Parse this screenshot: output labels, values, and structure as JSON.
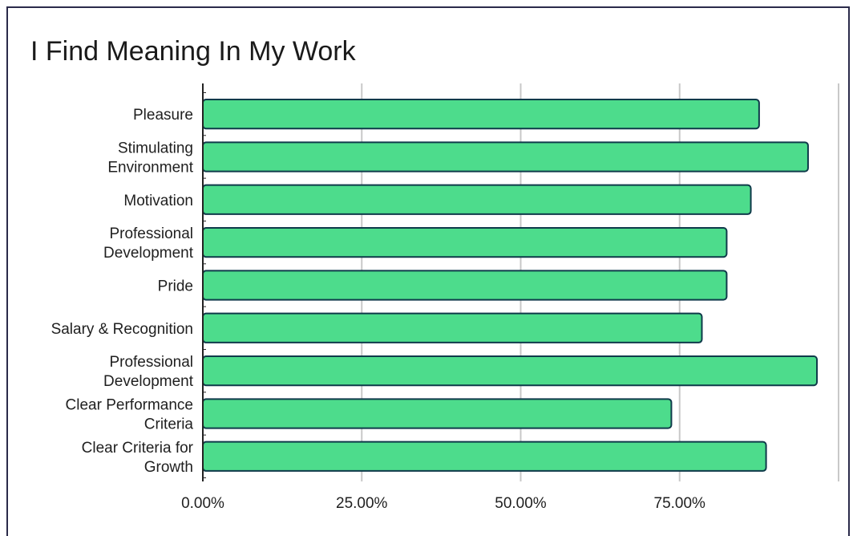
{
  "chart_data": {
    "type": "bar",
    "orientation": "horizontal",
    "title": "I Find Meaning In My Work",
    "xlabel": "",
    "ylabel": "",
    "categories": [
      [
        "Pleasure"
      ],
      [
        "Stimulating",
        "Environment"
      ],
      [
        "Motivation"
      ],
      [
        "Professional",
        "Development"
      ],
      [
        "Pride"
      ],
      [
        "Salary & Recognition"
      ],
      [
        "Professional",
        "Development"
      ],
      [
        "Clear Performance",
        "Criteria"
      ],
      [
        "Clear Criteria for",
        "Growth"
      ]
    ],
    "values": [
      87.5,
      95.2,
      86.2,
      82.4,
      82.4,
      78.5,
      96.6,
      73.7,
      88.6
    ],
    "xlim": [
      0,
      100
    ],
    "xticks": [
      "0.00%",
      "25.00%",
      "50.00%",
      "75.00%"
    ],
    "grid": true,
    "colors": {
      "bar_fill": "#4ddc8c",
      "bar_stroke": "#0f3a4a",
      "grid": "#c8c8c8",
      "axis": "#222222"
    }
  }
}
